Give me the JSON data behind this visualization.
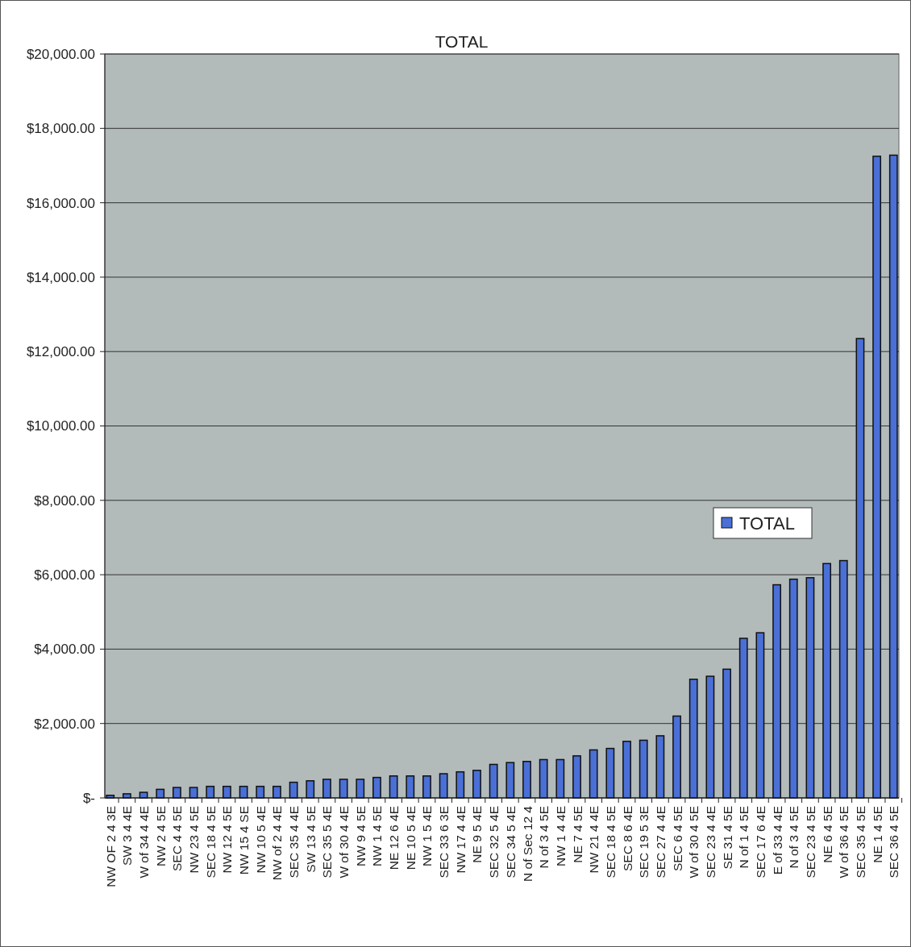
{
  "chart_data": {
    "type": "bar",
    "title": "TOTAL",
    "categories": [
      "NW OF 2 4 3E",
      "SW 3 4 4E",
      "W of 34 4 4E",
      "NW 2 4 5E",
      "SEC 4 4 5E",
      "NW 23 4 5E",
      "SEC 18 4 5E",
      "NW 12 4 5E",
      "NW 15 4 SE",
      "NW 10 5 4E",
      "NW of 2 4 4E",
      "SEC 35 4 4E",
      "SW 13 4 5E",
      "SEC 35 5 4E",
      "W of 30 4 4E",
      "NW 9 4 5E",
      "NW 1 4 5E",
      "NE 12 6 4E",
      "NE 10 5 4E",
      "NW 1 5 4E",
      "SEC 33 6 3E",
      "NW 17 4 4E",
      "NE 9 5 4E",
      "SEC 32 5 4E",
      "SEC 34 5 4E",
      "N of Sec 12 4",
      "N of 3 4 5E",
      "NW 1 4 4E",
      "NE 7 4 5E",
      "NW 21 4 4E",
      "SEC 18 4 5E",
      "SEC 8 6 4E",
      "SEC 19 5 3E",
      "SEC 27 4 4E",
      "SEC 6 4 5E",
      "W of 30 4 5E",
      "SEC 23 4 4E",
      "SE 31 4 5E",
      "N of 1 4 5E",
      "SEC 17 6 4E",
      "E of 33 4 4E",
      "N of 3 4 5E",
      "SEC 23 4 5E",
      "NE 6 4 5E",
      "W of 36 4 5E",
      "SEC 35 4 5E",
      "NE 1 4 5E",
      "SEC 36 4 5E"
    ],
    "series": [
      {
        "name": "TOTAL",
        "color": "#4a6fd6",
        "values": [
          70,
          110,
          150,
          230,
          280,
          280,
          310,
          310,
          310,
          310,
          310,
          420,
          460,
          500,
          500,
          500,
          550,
          590,
          590,
          590,
          650,
          700,
          740,
          900,
          950,
          980,
          1030,
          1030,
          1130,
          1290,
          1330,
          1520,
          1550,
          1670,
          2200,
          3190,
          3270,
          3460,
          4290,
          4440,
          5730,
          5880,
          5920,
          6300,
          6380,
          12350,
          17250,
          17280
        ]
      }
    ],
    "ylim": [
      0,
      20000
    ],
    "yticks": [
      {
        "value": 0,
        "label": "$-"
      },
      {
        "value": 2000,
        "label": "$2,000.00"
      },
      {
        "value": 4000,
        "label": "$4,000.00"
      },
      {
        "value": 6000,
        "label": "$6,000.00"
      },
      {
        "value": 8000,
        "label": "$8,000.00"
      },
      {
        "value": 10000,
        "label": "$10,000.00"
      },
      {
        "value": 12000,
        "label": "$12,000.00"
      },
      {
        "value": 14000,
        "label": "$14,000.00"
      },
      {
        "value": 16000,
        "label": "$16,000.00"
      },
      {
        "value": 18000,
        "label": "$18,000.00"
      },
      {
        "value": 20000,
        "label": "$20,000.00"
      }
    ],
    "grid": "y",
    "legend": "right"
  }
}
